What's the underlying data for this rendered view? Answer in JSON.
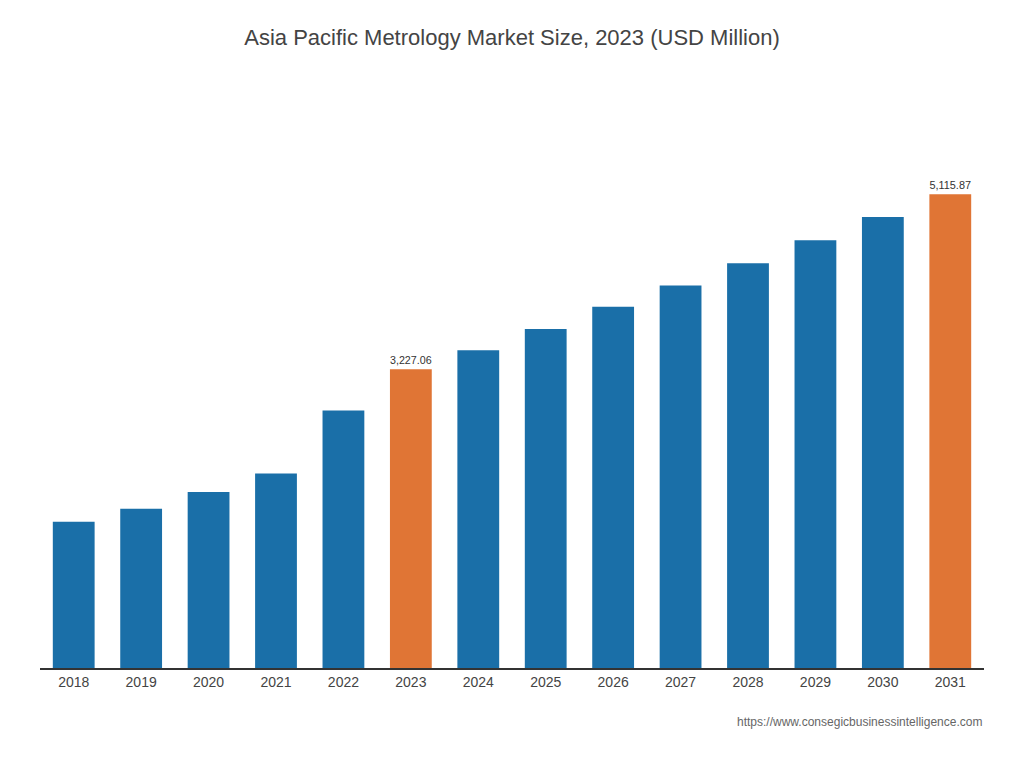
{
  "chart_data": {
    "type": "bar",
    "title": "Asia Pacific Metrology Market Size, 2023 (USD Million)",
    "categories": [
      "2018",
      "2019",
      "2020",
      "2021",
      "2022",
      "2023",
      "2024",
      "2025",
      "2026",
      "2027",
      "2028",
      "2029",
      "2030",
      "2031"
    ],
    "values": [
      1580.0,
      1720.0,
      1900.0,
      2100.0,
      2780.0,
      3227.06,
      3430.0,
      3660.0,
      3900.0,
      4130.0,
      4370.0,
      4620.0,
      4870.0,
      5115.87
    ],
    "colors": [
      "#1a6fa8",
      "#1a6fa8",
      "#1a6fa8",
      "#1a6fa8",
      "#1a6fa8",
      "#e07535",
      "#1a6fa8",
      "#1a6fa8",
      "#1a6fa8",
      "#1a6fa8",
      "#1a6fa8",
      "#1a6fa8",
      "#1a6fa8",
      "#e07535"
    ],
    "data_labels": true,
    "value_labels": [
      null,
      null,
      null,
      null,
      null,
      "3,227.06",
      null,
      null,
      null,
      null,
      null,
      null,
      null,
      "5,115.87"
    ],
    "ylim": [
      0,
      6241.3614
    ],
    "tick_labels": "x",
    "grid": false,
    "annotations": [
      "https://www.consegicbusinessintelligence.com"
    ]
  }
}
